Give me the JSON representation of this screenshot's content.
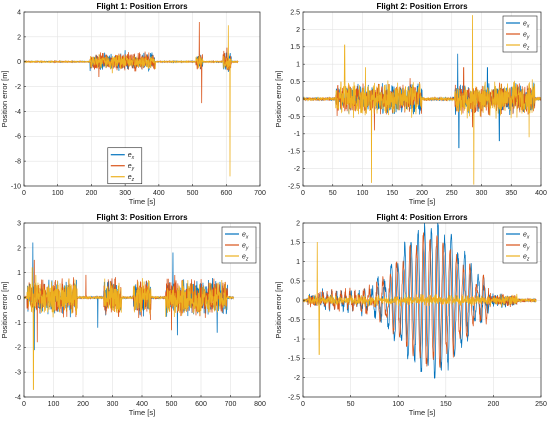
{
  "colors": {
    "ex": "#0072bd",
    "ey": "#d95319",
    "ez": "#edb120",
    "grid": "#e3e3e3",
    "axis": "#262626"
  },
  "legend_labels": [
    {
      "base": "e",
      "sub": "x"
    },
    {
      "base": "e",
      "sub": "y"
    },
    {
      "base": "e",
      "sub": "z"
    }
  ],
  "chart_data": [
    {
      "type": "line",
      "title": "Flight 1: Position Errors",
      "xlabel": "Time [s]",
      "ylabel": "Position error [m]",
      "xlim": [
        0,
        700
      ],
      "ylim": [
        -10,
        4
      ],
      "xticks": [
        0,
        100,
        200,
        300,
        400,
        500,
        600,
        700
      ],
      "yticks": [
        -10,
        -8,
        -6,
        -4,
        -2,
        0,
        2,
        4
      ],
      "grid": true,
      "legend_position": "bottom-center",
      "activity": [
        [
          195,
          390
        ],
        [
          510,
          530
        ],
        [
          590,
          615
        ]
      ],
      "series": [
        {
          "name": "ex",
          "amp": 0.8,
          "spikes": [
            [
              300,
              0.9
            ],
            [
              310,
              -0.6
            ],
            [
              600,
              0.7
            ],
            [
              606,
              -0.8
            ]
          ]
        },
        {
          "name": "ey",
          "amp": 0.9,
          "spikes": [
            [
              222,
              -1.2
            ],
            [
              520,
              3.2
            ],
            [
              527,
              -3.3
            ],
            [
              602,
              1.1
            ]
          ]
        },
        {
          "name": "ez",
          "amp": 0.7,
          "spikes": [
            [
              262,
              -0.9
            ],
            [
              606,
              2.9
            ],
            [
              611,
              -9.2
            ]
          ]
        }
      ]
    },
    {
      "type": "line",
      "title": "Flight 2: Position Errors",
      "xlabel": "Time [s]",
      "ylabel": "Position error [m]",
      "xlim": [
        0,
        400
      ],
      "ylim": [
        -2.5,
        2.5
      ],
      "xticks": [
        0,
        50,
        100,
        150,
        200,
        250,
        300,
        350,
        400
      ],
      "yticks": [
        -2.5,
        -2,
        -1.5,
        -1,
        -0.5,
        0,
        0.5,
        1,
        1.5,
        2,
        2.5
      ],
      "grid": true,
      "legend_position": "top-right",
      "activity": [
        [
          55,
          200
        ],
        [
          255,
          390
        ]
      ],
      "series": [
        {
          "name": "ex",
          "amp": 0.5,
          "spikes": [
            [
              260,
              1.3
            ],
            [
              262,
              -1.4
            ],
            [
              310,
              0.9
            ],
            [
              330,
              -1.2
            ]
          ]
        },
        {
          "name": "ey",
          "amp": 0.5,
          "spikes": [
            [
              120,
              -0.9
            ],
            [
              180,
              0.6
            ],
            [
              270,
              0.9
            ],
            [
              285,
              -0.8
            ]
          ]
        },
        {
          "name": "ez",
          "amp": 0.6,
          "spikes": [
            [
              70,
              1.55
            ],
            [
              105,
              0.9
            ],
            [
              115,
              -2.4
            ],
            [
              285,
              2.4
            ],
            [
              287,
              -2.45
            ],
            [
              380,
              -1.1
            ]
          ]
        }
      ]
    },
    {
      "type": "line",
      "title": "Flight 3: Position Errors",
      "xlabel": "Time [s]",
      "ylabel": "Position error [m]",
      "xlim": [
        0,
        800
      ],
      "ylim": [
        -4,
        3
      ],
      "xticks": [
        0,
        100,
        200,
        300,
        400,
        500,
        600,
        700,
        800
      ],
      "yticks": [
        -4,
        -3,
        -2,
        -1,
        0,
        1,
        2,
        3
      ],
      "grid": true,
      "legend_position": "top-right",
      "activity": [
        [
          10,
          180
        ],
        [
          270,
          330
        ],
        [
          370,
          430
        ],
        [
          480,
          690
        ]
      ],
      "series": [
        {
          "name": "ex",
          "amp": 0.8,
          "spikes": [
            [
              30,
              2.2
            ],
            [
              35,
              -2.1
            ],
            [
              250,
              -1.2
            ],
            [
              505,
              1.8
            ],
            [
              520,
              -1.5
            ],
            [
              655,
              -1.4
            ]
          ]
        },
        {
          "name": "ey",
          "amp": 0.9,
          "spikes": [
            [
              35,
              1.5
            ],
            [
              45,
              -1.8
            ],
            [
              210,
              0.9
            ],
            [
              500,
              -1.3
            ]
          ]
        },
        {
          "name": "ez",
          "amp": 0.8,
          "spikes": [
            [
              28,
              1.2
            ],
            [
              32,
              -3.7
            ],
            [
              40,
              0.9
            ]
          ]
        }
      ]
    },
    {
      "type": "line",
      "title": "Flight 4: Position Errors",
      "xlabel": "Time [s]",
      "ylabel": "Position error [m]",
      "xlim": [
        0,
        250
      ],
      "ylim": [
        -2.5,
        2
      ],
      "xticks": [
        0,
        50,
        100,
        150,
        200,
        250
      ],
      "yticks": [
        -2.5,
        -2,
        -1.5,
        -1,
        -0.5,
        0,
        0.5,
        1,
        1.5,
        2
      ],
      "grid": true,
      "legend_position": "top-right",
      "activity": [
        [
          5,
          225
        ]
      ],
      "series": [
        {
          "name": "ex",
          "amp": 0.2,
          "osc": {
            "from": 20,
            "to": 195,
            "center": 135,
            "width": 45,
            "amp": 1.9,
            "period": 7
          }
        },
        {
          "name": "ey",
          "amp": 0.2,
          "osc": {
            "from": 20,
            "to": 195,
            "center": 135,
            "width": 45,
            "amp": 1.6,
            "period": 7,
            "phase": 1.2
          }
        },
        {
          "name": "ez",
          "amp": 0.15,
          "spikes": [
            [
              15,
              1.5
            ],
            [
              17,
              -1.4
            ]
          ]
        }
      ]
    }
  ]
}
